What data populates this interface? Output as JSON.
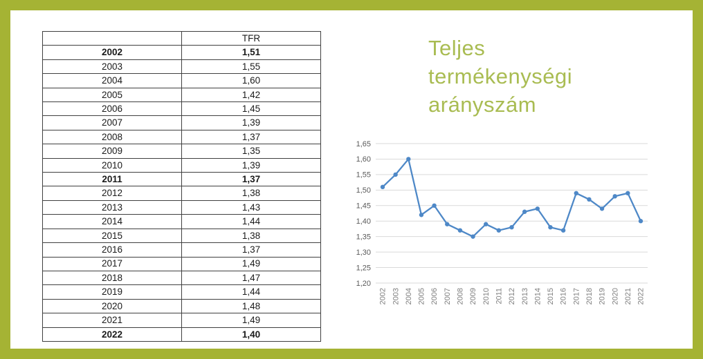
{
  "page": {
    "frame_color": "#a5b334",
    "background": "#ffffff"
  },
  "title": {
    "text": "Teljes termékenységi arányszám",
    "lines": [
      "Teljes",
      "termékenységi",
      "arányszám"
    ],
    "color": "#a9bc52"
  },
  "table": {
    "header": {
      "year": "",
      "value": "TFR"
    },
    "rows": [
      {
        "year": "2002",
        "value": "1,51",
        "bold": true
      },
      {
        "year": "2003",
        "value": "1,55",
        "bold": false
      },
      {
        "year": "2004",
        "value": "1,60",
        "bold": false
      },
      {
        "year": "2005",
        "value": "1,42",
        "bold": false
      },
      {
        "year": "2006",
        "value": "1,45",
        "bold": false
      },
      {
        "year": "2007",
        "value": "1,39",
        "bold": false
      },
      {
        "year": "2008",
        "value": "1,37",
        "bold": false
      },
      {
        "year": "2009",
        "value": "1,35",
        "bold": false
      },
      {
        "year": "2010",
        "value": "1,39",
        "bold": false
      },
      {
        "year": "2011",
        "value": "1,37",
        "bold": true
      },
      {
        "year": "2012",
        "value": "1,38",
        "bold": false
      },
      {
        "year": "2013",
        "value": "1,43",
        "bold": false
      },
      {
        "year": "2014",
        "value": "1,44",
        "bold": false
      },
      {
        "year": "2015",
        "value": "1,38",
        "bold": false
      },
      {
        "year": "2016",
        "value": "1,37",
        "bold": false
      },
      {
        "year": "2017",
        "value": "1,49",
        "bold": false
      },
      {
        "year": "2018",
        "value": "1,47",
        "bold": false
      },
      {
        "year": "2019",
        "value": "1,44",
        "bold": false
      },
      {
        "year": "2020",
        "value": "1,48",
        "bold": false
      },
      {
        "year": "2021",
        "value": "1,49",
        "bold": false
      },
      {
        "year": "2022",
        "value": "1,40",
        "bold": true
      }
    ]
  },
  "chart_data": {
    "type": "line",
    "title": "",
    "xlabel": "",
    "ylabel": "",
    "x": [
      "2002",
      "2003",
      "2004",
      "2005",
      "2006",
      "2007",
      "2008",
      "2009",
      "2010",
      "2011",
      "2012",
      "2013",
      "2014",
      "2015",
      "2016",
      "2017",
      "2018",
      "2019",
      "2020",
      "2021",
      "2022"
    ],
    "series": [
      {
        "name": "TFR",
        "values": [
          1.51,
          1.55,
          1.6,
          1.42,
          1.45,
          1.39,
          1.37,
          1.35,
          1.39,
          1.37,
          1.38,
          1.43,
          1.44,
          1.38,
          1.37,
          1.49,
          1.47,
          1.44,
          1.48,
          1.49,
          1.4
        ]
      }
    ],
    "ylim": [
      1.2,
      1.65
    ],
    "ytick_step": 0.05,
    "ytick_labels": [
      "1,20",
      "1,25",
      "1,30",
      "1,35",
      "1,40",
      "1,45",
      "1,50",
      "1,55",
      "1,60",
      "1,65"
    ],
    "grid": true,
    "legend_position": "none",
    "line_color": "#4e88c7",
    "marker": "circle",
    "gridline_color": "#d9d9d9",
    "ytick_label_color": "#595959",
    "xtick_label_color": "#7f7f7f"
  }
}
